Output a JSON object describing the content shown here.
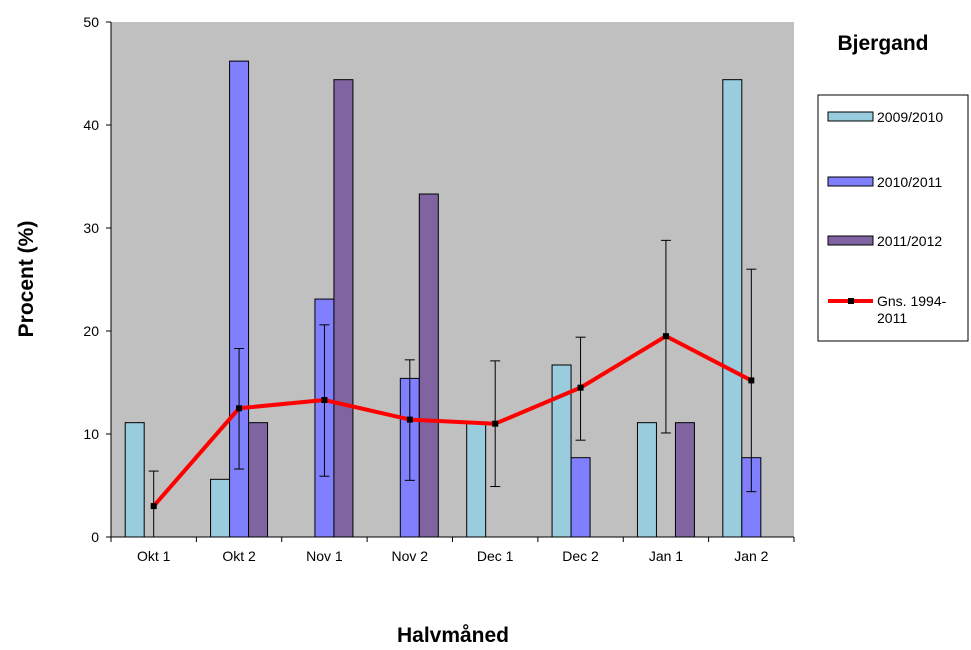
{
  "chart_data": {
    "type": "bar",
    "title": "Bjergand",
    "xlabel": "Halvmåned",
    "ylabel": "Procent (%)",
    "ylim": [
      0,
      50
    ],
    "yticks": [
      0,
      10,
      20,
      30,
      40,
      50
    ],
    "grid": false,
    "legend_position": "right",
    "categories": [
      "Okt 1",
      "Okt 2",
      "Nov 1",
      "Nov 2",
      "Dec 1",
      "Dec 2",
      "Jan 1",
      "Jan 2"
    ],
    "series": [
      {
        "name": "2009/2010",
        "kind": "bar",
        "color": "#99ccdd",
        "values": [
          11.1,
          5.6,
          0,
          0,
          11.1,
          16.7,
          11.1,
          44.4
        ]
      },
      {
        "name": "2010/2011",
        "kind": "bar",
        "color": "#8080ff",
        "values": [
          0,
          46.2,
          23.1,
          15.4,
          0,
          7.7,
          0,
          7.7
        ]
      },
      {
        "name": "2011/2012",
        "kind": "bar",
        "color": "#8064a2",
        "values": [
          0,
          11.1,
          44.4,
          33.3,
          0,
          0,
          11.1,
          0
        ]
      },
      {
        "name": "Gns. 1994-2011",
        "kind": "line",
        "color": "#ff0000",
        "values": [
          3.0,
          12.5,
          13.3,
          11.4,
          11.0,
          14.5,
          19.5,
          15.2
        ],
        "error_low": [
          0,
          6.6,
          5.9,
          5.5,
          4.9,
          9.4,
          10.1,
          4.4
        ],
        "error_high": [
          6.4,
          18.3,
          20.6,
          17.2,
          17.1,
          19.4,
          28.8,
          26.0
        ]
      }
    ],
    "legend_labels": [
      [
        "2009/2010"
      ],
      [
        "2010/2011"
      ],
      [
        "2011/2012"
      ],
      [
        "Gns. 1994-",
        "2011"
      ]
    ],
    "colors": {
      "plot_background": "#c0c0c0"
    }
  }
}
